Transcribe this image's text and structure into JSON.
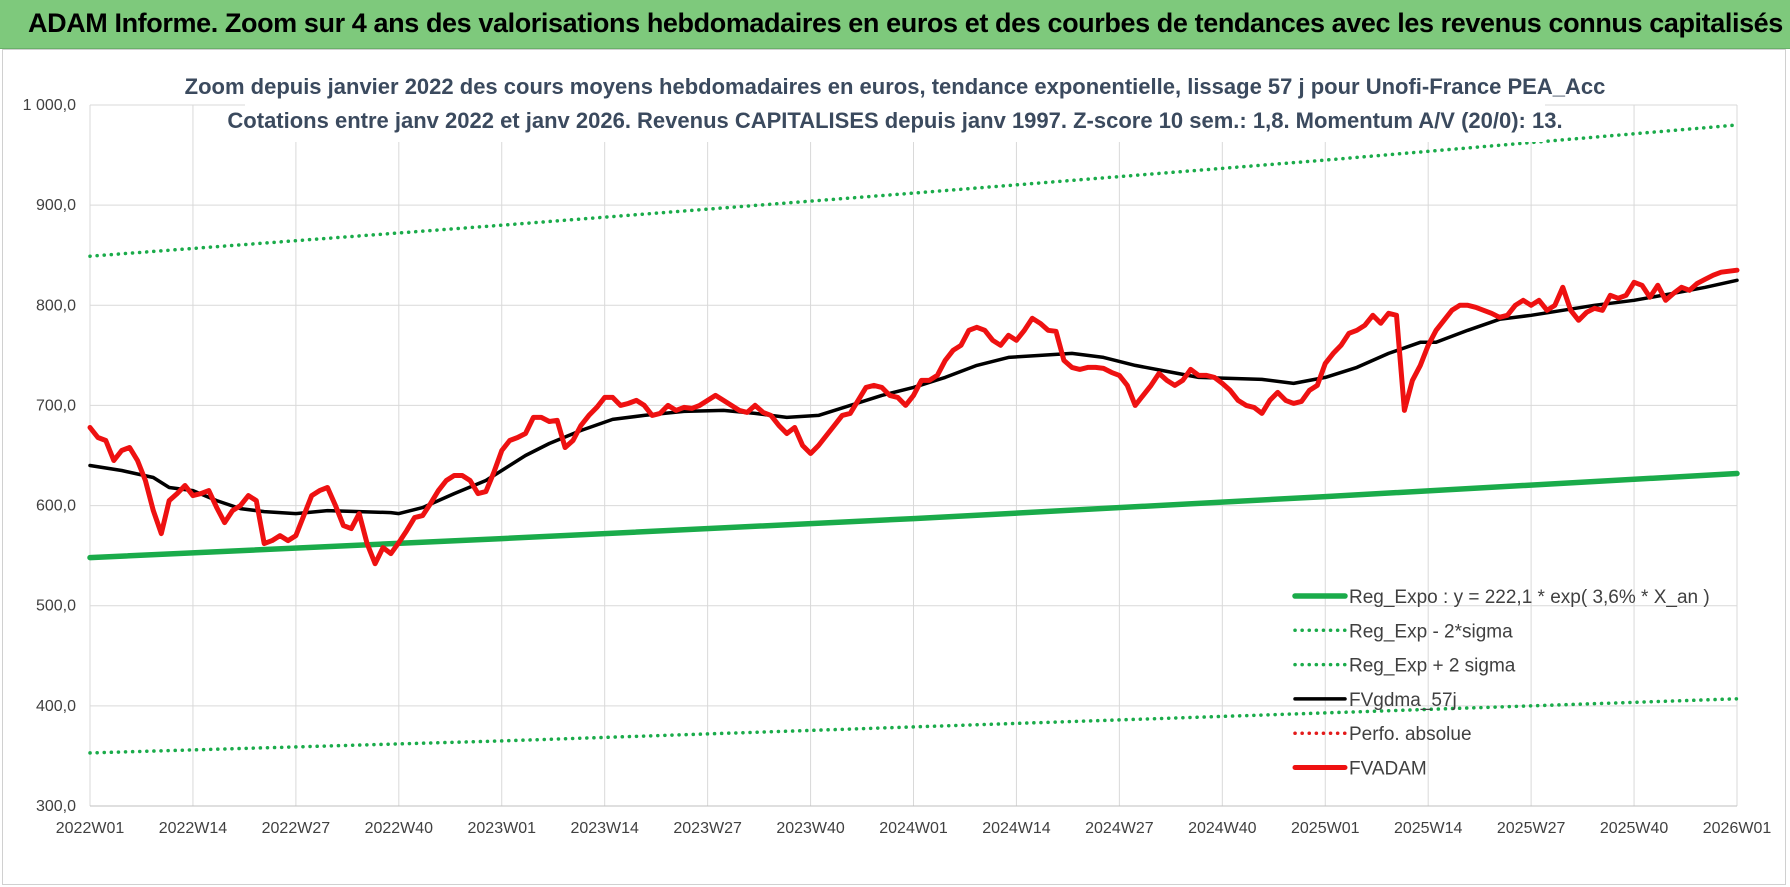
{
  "header": {
    "title": "ADAM Informe. Zoom sur 4 ans des valorisations hebdomadaires en euros et des courbes de tendances avec les revenus connus capitalisés"
  },
  "colors": {
    "header_bg": "#7ec97c",
    "reg_expo": "#1aab4a",
    "sigma_band": "#1aab4a",
    "gdma": "#000000",
    "perfo": "#e31a1a",
    "fvadam": "#ee1111",
    "title_text": "#3b4a5e"
  },
  "chart_data": {
    "type": "line",
    "title_lines": [
      "Zoom depuis janvier 2022 des cours moyens hebdomadaires en euros, tendance exponentielle, lissage 57 j pour Unofi-France PEA_Acc",
      "Cotations entre janv 2022 et janv 2026. Revenus CAPITALISES depuis janv 1997. Z-score 10 sem.: 1,8. Momentum A/V (20/0): 13."
    ],
    "ylim": [
      300,
      1000
    ],
    "ytick_values": [
      300,
      400,
      500,
      600,
      700,
      800,
      900,
      1000
    ],
    "ytick_labels": [
      "300,0",
      "400,0",
      "500,0",
      "600,0",
      "700,0",
      "800,0",
      "900,0",
      "1 000,0"
    ],
    "xlim": [
      0,
      208
    ],
    "xtick_values": [
      0,
      13,
      26,
      39,
      52,
      65,
      78,
      91,
      104,
      117,
      130,
      143,
      156,
      169,
      182,
      195,
      208
    ],
    "xtick_labels": [
      "2022W01",
      "2022W14",
      "2022W27",
      "2022W40",
      "2023W01",
      "2023W14",
      "2023W27",
      "2023W40",
      "2024W01",
      "2024W14",
      "2024W27",
      "2024W40",
      "2025W01",
      "2025W14",
      "2025W27",
      "2025W40",
      "2026W01"
    ],
    "x_unit": "week index since 2022W01",
    "grid": true,
    "legend_position": "bottom-right",
    "series": [
      {
        "name": "Reg_Expo : y = 222,1 * exp( 3,6% *  X_an )",
        "style": "solid-thick",
        "color": "#1aab4a",
        "x": [
          0,
          52,
          104,
          156,
          208
        ],
        "values": [
          548,
          567,
          587,
          609,
          632
        ]
      },
      {
        "name": "Reg_Exp - 2*sigma",
        "style": "dotted",
        "color": "#1aab4a",
        "x": [
          0,
          52,
          104,
          156,
          208
        ],
        "values": [
          353,
          365,
          379,
          393,
          407
        ]
      },
      {
        "name": "Reg_Exp + 2 sigma",
        "style": "dotted",
        "color": "#1aab4a",
        "x": [
          0,
          52,
          104,
          156,
          208
        ],
        "values": [
          849,
          880,
          912,
          945,
          980
        ]
      },
      {
        "name": "FVgdma_57j",
        "style": "solid",
        "color": "#000000",
        "x": [
          0,
          4,
          8,
          10,
          13,
          16,
          19,
          22,
          26,
          30,
          34,
          38,
          39,
          42,
          46,
          50,
          52,
          55,
          58,
          62,
          66,
          70,
          75,
          80,
          84,
          88,
          92,
          96,
          100,
          104,
          108,
          112,
          116,
          120,
          124,
          128,
          132,
          136,
          140,
          144,
          148,
          152,
          156,
          160,
          164,
          168,
          170,
          174,
          178,
          182,
          186,
          190,
          195,
          200,
          204,
          208
        ],
        "values": [
          640,
          635,
          628,
          618,
          615,
          605,
          597,
          594,
          592,
          595,
          594,
          593,
          592,
          598,
          612,
          625,
          635,
          650,
          662,
          675,
          686,
          690,
          694,
          695,
          692,
          688,
          690,
          700,
          710,
          718,
          728,
          740,
          748,
          750,
          752,
          748,
          740,
          734,
          728,
          727,
          726,
          722,
          728,
          738,
          752,
          763,
          763,
          775,
          786,
          790,
          795,
          800,
          805,
          812,
          818,
          825
        ]
      },
      {
        "name": "Perfo. absolue",
        "style": "dotted",
        "color": "#e31a1a",
        "x": [],
        "values": []
      },
      {
        "name": "FVADAM",
        "style": "solid-thick",
        "color": "#ee1111",
        "x": [
          0,
          1,
          2,
          3,
          4,
          5,
          6,
          7,
          8,
          9,
          10,
          11,
          12,
          13,
          14,
          15,
          16,
          17,
          18,
          19,
          20,
          21,
          22,
          23,
          24,
          25,
          26,
          27,
          28,
          29,
          30,
          31,
          32,
          33,
          34,
          35,
          36,
          37,
          38,
          39,
          40,
          41,
          42,
          43,
          44,
          45,
          46,
          47,
          48,
          49,
          50,
          51,
          52,
          53,
          54,
          55,
          56,
          57,
          58,
          59,
          60,
          61,
          62,
          63,
          64,
          65,
          66,
          67,
          68,
          69,
          70,
          71,
          72,
          73,
          74,
          75,
          76,
          77,
          78,
          79,
          80,
          81,
          82,
          83,
          84,
          85,
          86,
          87,
          88,
          89,
          90,
          91,
          92,
          93,
          94,
          95,
          96,
          97,
          98,
          99,
          100,
          101,
          102,
          103,
          104,
          105,
          106,
          107,
          108,
          109,
          110,
          111,
          112,
          113,
          114,
          115,
          116,
          117,
          118,
          119,
          120,
          121,
          122,
          123,
          124,
          125,
          126,
          127,
          128,
          129,
          130,
          131,
          132,
          133,
          134,
          135,
          136,
          137,
          138,
          139,
          140,
          141,
          142,
          143,
          144,
          145,
          146,
          147,
          148,
          149,
          150,
          151,
          152,
          153,
          154,
          155,
          156,
          157,
          158,
          159,
          160,
          161,
          162,
          163,
          164,
          165,
          166,
          167,
          168,
          169,
          170,
          171,
          172,
          173,
          174,
          175,
          176,
          177,
          178,
          179,
          180,
          181,
          182,
          183,
          184,
          185,
          186,
          187,
          188,
          189,
          190,
          191,
          192,
          193,
          194,
          195,
          196,
          197,
          198,
          199,
          200,
          201,
          202,
          203,
          204,
          205,
          206,
          207,
          208
        ],
        "values": [
          678,
          668,
          665,
          645,
          655,
          658,
          645,
          625,
          595,
          572,
          605,
          612,
          620,
          610,
          612,
          615,
          598,
          583,
          595,
          600,
          610,
          605,
          562,
          565,
          570,
          565,
          570,
          590,
          610,
          615,
          618,
          600,
          580,
          577,
          592,
          562,
          542,
          558,
          552,
          563,
          575,
          588,
          590,
          602,
          615,
          625,
          630,
          630,
          625,
          612,
          614,
          633,
          655,
          665,
          668,
          672,
          688,
          688,
          684,
          685,
          658,
          665,
          680,
          690,
          698,
          708,
          708,
          700,
          702,
          705,
          700,
          690,
          692,
          700,
          695,
          698,
          697,
          700,
          705,
          710,
          705,
          700,
          695,
          693,
          700,
          693,
          690,
          680,
          672,
          678,
          660,
          652,
          660,
          670,
          680,
          690,
          692,
          705,
          718,
          720,
          718,
          710,
          708,
          700,
          710,
          725,
          725,
          730,
          745,
          755,
          760,
          775,
          778,
          775,
          765,
          760,
          770,
          765,
          775,
          787,
          782,
          775,
          774,
          745,
          738,
          736,
          738,
          738,
          737,
          733,
          730,
          720,
          700,
          710,
          720,
          732,
          725,
          720,
          725,
          736,
          730,
          730,
          728,
          722,
          715,
          705,
          700,
          698,
          692,
          705,
          713,
          705,
          702,
          704,
          715,
          720,
          742,
          752,
          760,
          772,
          775,
          780,
          790,
          782,
          792,
          790,
          695,
          725,
          740,
          760,
          775,
          785,
          795,
          800,
          800,
          798,
          795,
          792,
          788,
          790,
          800,
          805,
          800,
          805,
          795,
          800,
          818,
          795,
          785,
          793,
          797,
          795,
          810,
          807,
          810,
          823,
          820,
          808,
          820,
          805,
          812,
          818,
          815,
          822,
          826,
          830,
          833,
          834,
          835
        ]
      }
    ]
  }
}
